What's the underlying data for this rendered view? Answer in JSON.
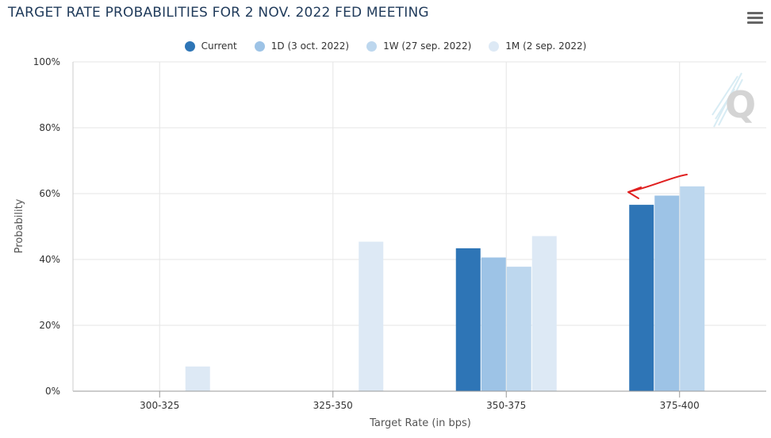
{
  "chart_data": {
    "type": "bar",
    "title": "TARGET RATE PROBABILITIES FOR 2 NOV. 2022 FED MEETING",
    "xlabel": "Target Rate (in bps)",
    "ylabel": "Probability",
    "ylim": [
      0,
      100
    ],
    "yticks": [
      "0%",
      "20%",
      "40%",
      "60%",
      "80%",
      "100%"
    ],
    "categories": [
      "300-325",
      "325-350",
      "350-375",
      "375-400"
    ],
    "series": [
      {
        "name": "Current",
        "color": "#2e75b6",
        "values": [
          0,
          0,
          43.4,
          56.6
        ]
      },
      {
        "name": "1D (3 oct. 2022)",
        "color": "#9dc3e6",
        "values": [
          0,
          0,
          40.6,
          59.4
        ]
      },
      {
        "name": "1W (27 sep. 2022)",
        "color": "#bdd7ee",
        "values": [
          0,
          0,
          37.8,
          62.2
        ]
      },
      {
        "name": "1M (2 sep. 2022)",
        "color": "#dde9f5",
        "values": [
          7.5,
          45.4,
          47.1,
          0
        ]
      }
    ],
    "grid": true,
    "legend_position": "top-center"
  },
  "annotation": {
    "type": "arrow",
    "color": "#e02020"
  },
  "watermark": {
    "letter": "Q"
  }
}
